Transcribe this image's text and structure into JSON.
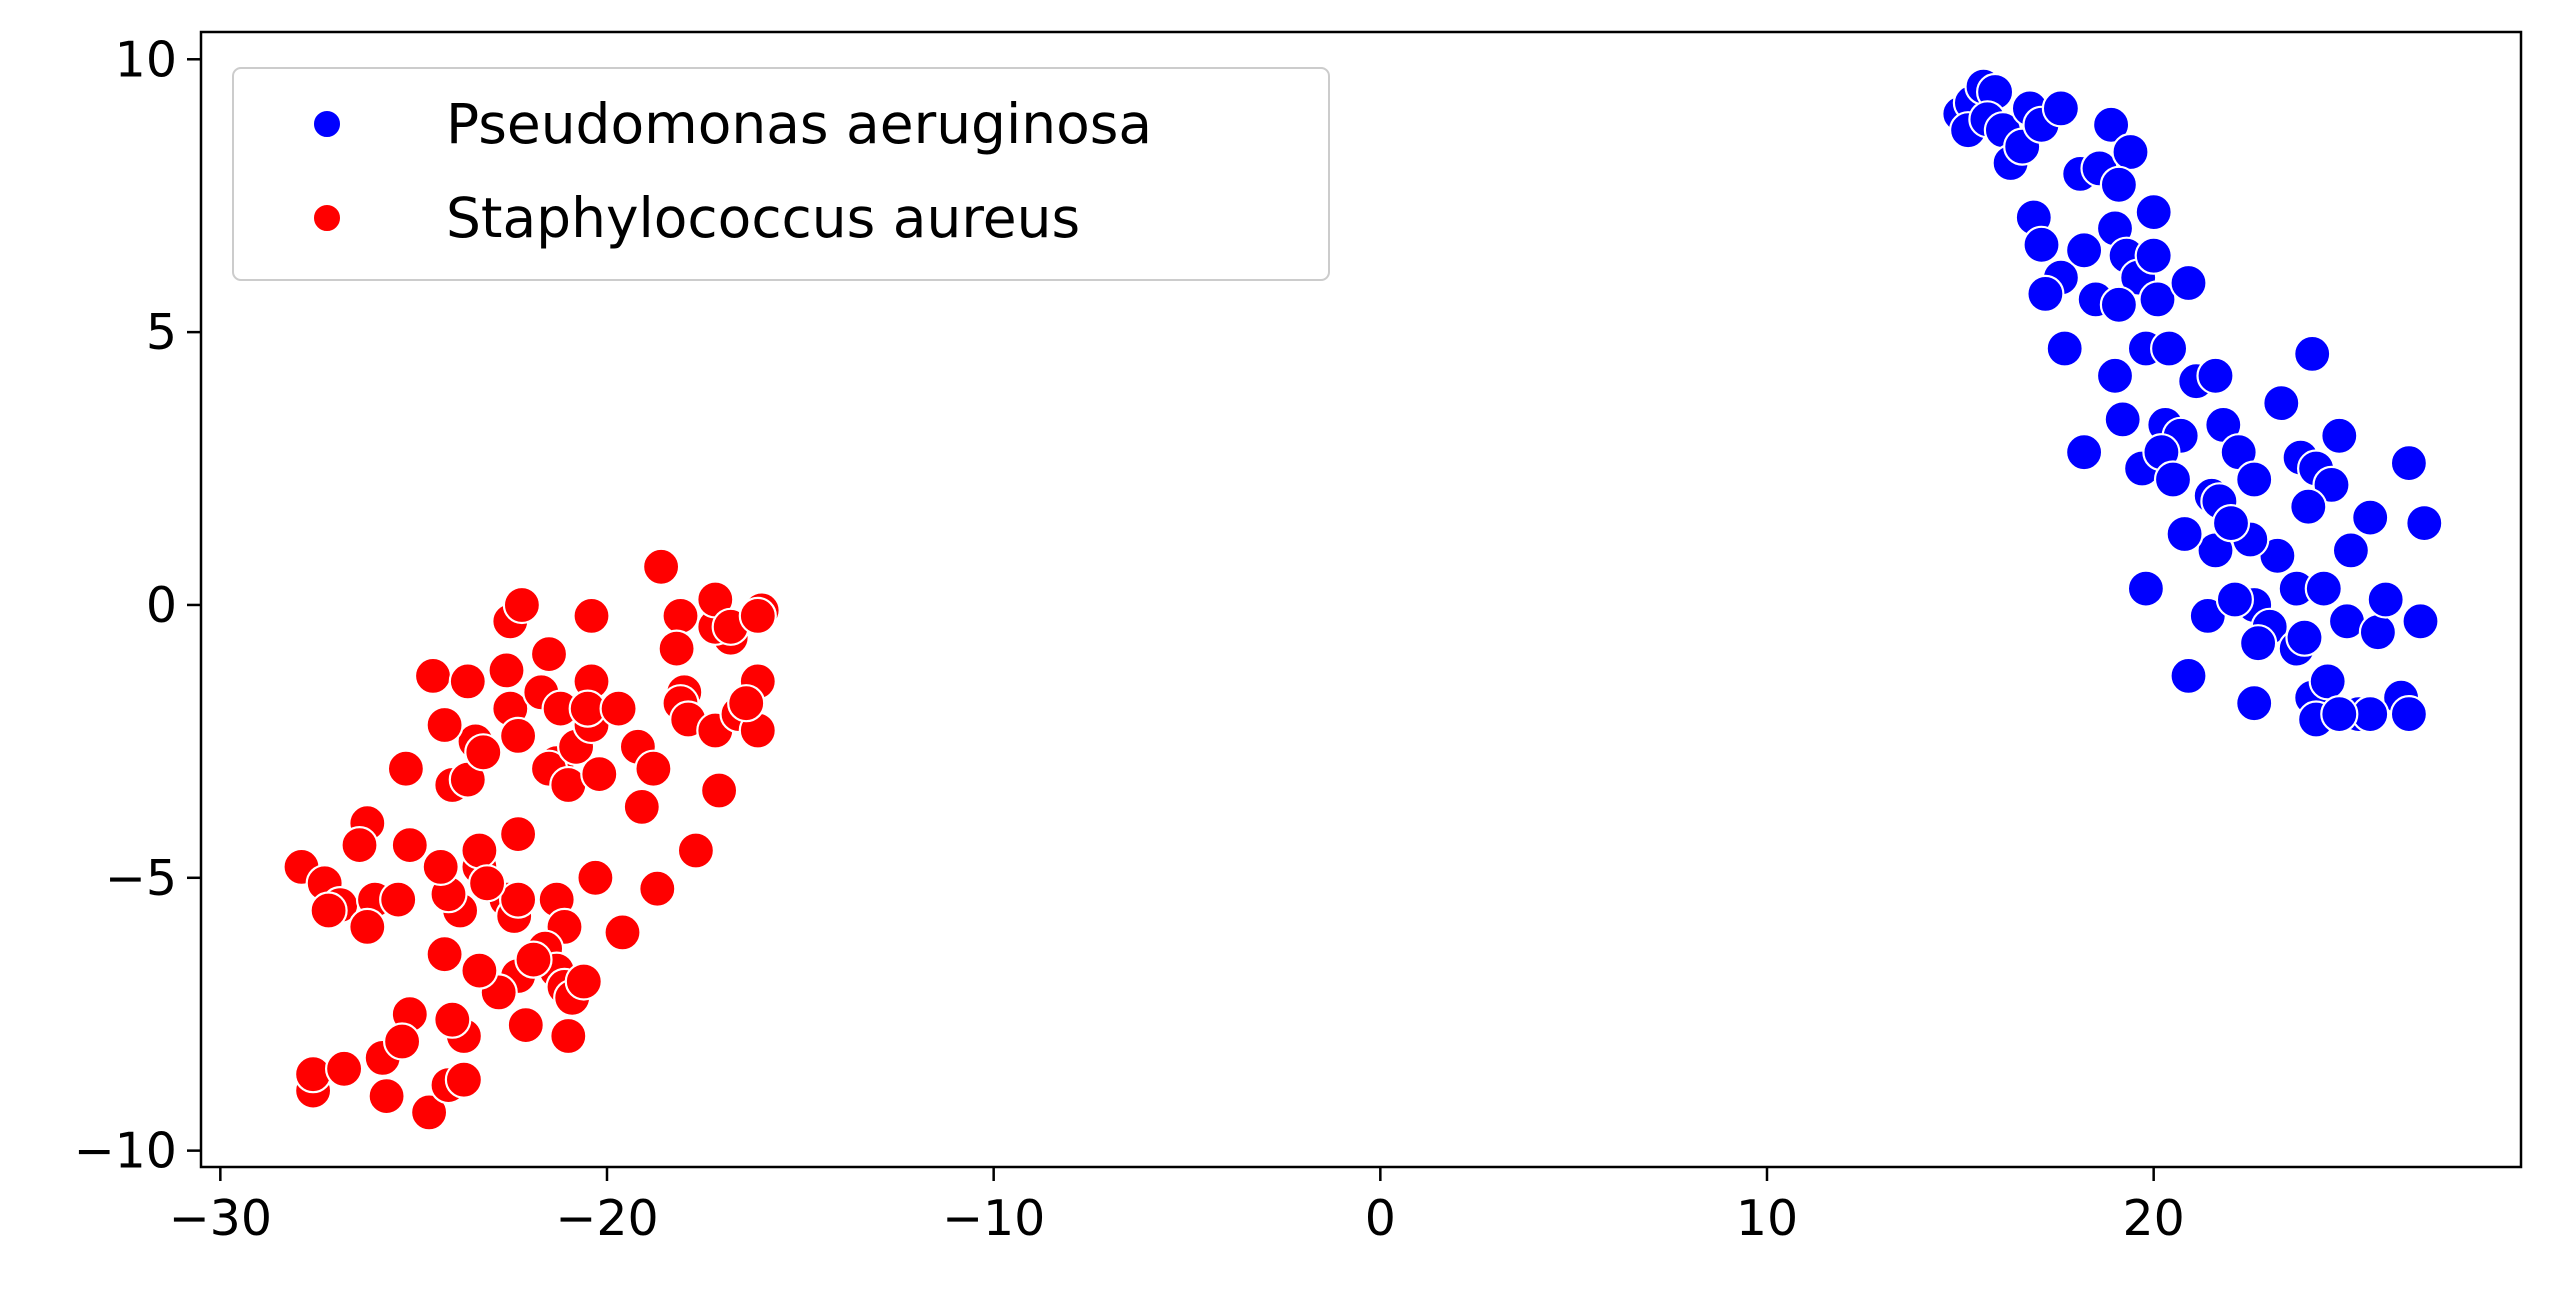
{
  "chart_data": {
    "type": "scatter",
    "title": "",
    "xlabel": "",
    "ylabel": "",
    "xlim": [
      -30.5,
      29.5
    ],
    "ylim": [
      -10.3,
      10.5
    ],
    "xticks": [
      -30,
      -20,
      -10,
      0,
      10,
      20
    ],
    "xtick_labels": [
      "−30",
      "−20",
      "−10",
      "0",
      "10",
      "20"
    ],
    "yticks": [
      10,
      5,
      0,
      -5,
      -10
    ],
    "ytick_labels": [
      "10",
      "5",
      "0",
      "−5",
      "−10"
    ],
    "grid": false,
    "legend_position": "upper-left",
    "series": [
      {
        "name": "Pseudomonas aeruginosa",
        "color": "#0000ff",
        "points": [
          [
            15.0,
            9.0
          ],
          [
            15.3,
            9.2
          ],
          [
            15.6,
            9.5
          ],
          [
            15.9,
            9.4
          ],
          [
            15.2,
            8.7
          ],
          [
            15.7,
            8.9
          ],
          [
            16.1,
            8.7
          ],
          [
            16.3,
            8.1
          ],
          [
            16.6,
            8.4
          ],
          [
            16.8,
            9.1
          ],
          [
            17.1,
            8.8
          ],
          [
            17.6,
            9.1
          ],
          [
            16.9,
            7.1
          ],
          [
            17.1,
            6.6
          ],
          [
            17.6,
            6.0
          ],
          [
            17.2,
            5.7
          ],
          [
            17.7,
            4.7
          ],
          [
            18.2,
            6.5
          ],
          [
            18.5,
            5.6
          ],
          [
            18.1,
            7.9
          ],
          [
            18.6,
            8.0
          ],
          [
            18.9,
            8.8
          ],
          [
            19.4,
            8.3
          ],
          [
            19.1,
            7.7
          ],
          [
            19.0,
            6.9
          ],
          [
            19.3,
            6.4
          ],
          [
            19.6,
            6.0
          ],
          [
            19.1,
            5.5
          ],
          [
            19.8,
            4.7
          ],
          [
            19.0,
            4.2
          ],
          [
            19.2,
            3.4
          ],
          [
            18.2,
            2.8
          ],
          [
            19.7,
            2.5
          ],
          [
            20.0,
            7.2
          ],
          [
            20.0,
            6.4
          ],
          [
            20.4,
            4.7
          ],
          [
            20.1,
            5.6
          ],
          [
            20.9,
            5.9
          ],
          [
            21.1,
            4.1
          ],
          [
            21.6,
            4.2
          ],
          [
            20.3,
            3.3
          ],
          [
            20.7,
            3.1
          ],
          [
            20.2,
            2.8
          ],
          [
            20.5,
            2.3
          ],
          [
            21.5,
            2.0
          ],
          [
            21.8,
            3.3
          ],
          [
            22.2,
            2.8
          ],
          [
            22.6,
            2.3
          ],
          [
            23.3,
            3.7
          ],
          [
            23.8,
            2.7
          ],
          [
            24.2,
            2.5
          ],
          [
            24.8,
            3.1
          ],
          [
            24.6,
            2.2
          ],
          [
            24.1,
            4.6
          ],
          [
            26.6,
            2.6
          ],
          [
            27.0,
            1.5
          ],
          [
            25.6,
            1.6
          ],
          [
            25.1,
            1.0
          ],
          [
            24.0,
            1.8
          ],
          [
            23.2,
            0.9
          ],
          [
            22.5,
            1.2
          ],
          [
            21.7,
            1.9
          ],
          [
            21.6,
            1.0
          ],
          [
            20.8,
            1.3
          ],
          [
            22.0,
            1.5
          ],
          [
            22.6,
            0.0
          ],
          [
            23.7,
            0.3
          ],
          [
            24.4,
            0.3
          ],
          [
            23.0,
            -0.4
          ],
          [
            23.7,
            -0.8
          ],
          [
            22.6,
            -1.8
          ],
          [
            24.1,
            -1.7
          ],
          [
            24.5,
            -1.4
          ],
          [
            25.0,
            -0.3
          ],
          [
            25.8,
            -0.5
          ],
          [
            26.0,
            0.1
          ],
          [
            26.9,
            -0.3
          ],
          [
            24.2,
            -2.1
          ],
          [
            25.3,
            -2.0
          ],
          [
            26.4,
            -1.7
          ],
          [
            26.6,
            -2.0
          ],
          [
            21.4,
            -0.2
          ],
          [
            19.8,
            0.3
          ],
          [
            20.9,
            -1.3
          ],
          [
            25.6,
            -2.0
          ],
          [
            22.1,
            0.1
          ],
          [
            22.7,
            -0.7
          ],
          [
            23.9,
            -0.6
          ],
          [
            24.8,
            -2.0
          ]
        ]
      },
      {
        "name": "Staphylococcus aureus",
        "color": "#ff0000",
        "points": [
          [
            -27.9,
            -4.8
          ],
          [
            -27.3,
            -5.1
          ],
          [
            -26.9,
            -5.5
          ],
          [
            -27.2,
            -5.6
          ],
          [
            -26.2,
            -4.0
          ],
          [
            -26.4,
            -4.4
          ],
          [
            -26.0,
            -5.4
          ],
          [
            -26.2,
            -5.9
          ],
          [
            -25.2,
            -3.0
          ],
          [
            -25.1,
            -4.4
          ],
          [
            -25.4,
            -5.4
          ],
          [
            -27.6,
            -8.9
          ],
          [
            -27.6,
            -8.6
          ],
          [
            -26.8,
            -8.5
          ],
          [
            -25.7,
            -9.0
          ],
          [
            -25.8,
            -8.3
          ],
          [
            -25.1,
            -7.5
          ],
          [
            -25.3,
            -8.0
          ],
          [
            -24.6,
            -9.3
          ],
          [
            -24.1,
            -8.8
          ],
          [
            -23.7,
            -8.7
          ],
          [
            -23.7,
            -7.9
          ],
          [
            -24.0,
            -7.6
          ],
          [
            -24.2,
            -6.4
          ],
          [
            -23.8,
            -5.6
          ],
          [
            -24.1,
            -5.3
          ],
          [
            -24.3,
            -4.8
          ],
          [
            -23.3,
            -4.8
          ],
          [
            -23.3,
            -4.5
          ],
          [
            -24.0,
            -3.3
          ],
          [
            -23.6,
            -3.2
          ],
          [
            -23.4,
            -2.5
          ],
          [
            -23.2,
            -2.7
          ],
          [
            -24.2,
            -2.2
          ],
          [
            -24.5,
            -1.3
          ],
          [
            -23.6,
            -1.4
          ],
          [
            -22.6,
            -1.2
          ],
          [
            -22.5,
            -1.9
          ],
          [
            -22.3,
            -2.4
          ],
          [
            -22.5,
            -0.3
          ],
          [
            -22.2,
            0.0
          ],
          [
            -21.5,
            -0.9
          ],
          [
            -21.7,
            -1.6
          ],
          [
            -21.3,
            -2.9
          ],
          [
            -21.5,
            -3.0
          ],
          [
            -21.0,
            -3.3
          ],
          [
            -20.8,
            -2.6
          ],
          [
            -21.2,
            -1.9
          ],
          [
            -20.4,
            -1.4
          ],
          [
            -20.4,
            -0.2
          ],
          [
            -20.4,
            -2.2
          ],
          [
            -20.2,
            -3.1
          ],
          [
            -20.5,
            -1.9
          ],
          [
            -19.7,
            -1.9
          ],
          [
            -19.2,
            -2.6
          ],
          [
            -19.1,
            -3.7
          ],
          [
            -18.8,
            -3.0
          ],
          [
            -18.7,
            -5.2
          ],
          [
            -18.6,
            0.7
          ],
          [
            -18.1,
            -0.2
          ],
          [
            -18.2,
            -0.8
          ],
          [
            -18.0,
            -1.6
          ],
          [
            -18.1,
            -1.8
          ],
          [
            -17.9,
            -2.1
          ],
          [
            -17.7,
            -4.5
          ],
          [
            -17.1,
            -3.4
          ],
          [
            -17.2,
            -2.3
          ],
          [
            -16.6,
            -2.0
          ],
          [
            -16.8,
            -0.6
          ],
          [
            -17.2,
            -0.4
          ],
          [
            -17.2,
            0.1
          ],
          [
            -16.8,
            -0.4
          ],
          [
            -16.0,
            -0.1
          ],
          [
            -16.1,
            -0.2
          ],
          [
            -16.1,
            -1.4
          ],
          [
            -16.1,
            -2.3
          ],
          [
            -16.4,
            -1.8
          ],
          [
            -22.3,
            -4.2
          ],
          [
            -22.6,
            -5.4
          ],
          [
            -22.4,
            -5.7
          ],
          [
            -21.3,
            -5.4
          ],
          [
            -21.1,
            -5.9
          ],
          [
            -20.3,
            -5.0
          ],
          [
            -19.6,
            -6.0
          ],
          [
            -21.6,
            -6.3
          ],
          [
            -21.3,
            -6.7
          ],
          [
            -21.1,
            -7.0
          ],
          [
            -20.9,
            -7.2
          ],
          [
            -20.6,
            -6.9
          ],
          [
            -21.0,
            -7.9
          ],
          [
            -22.1,
            -7.7
          ],
          [
            -22.3,
            -6.8
          ],
          [
            -22.8,
            -7.1
          ],
          [
            -23.3,
            -6.7
          ],
          [
            -21.9,
            -6.5
          ],
          [
            -22.3,
            -5.4
          ],
          [
            -23.1,
            -5.1
          ]
        ]
      }
    ]
  }
}
